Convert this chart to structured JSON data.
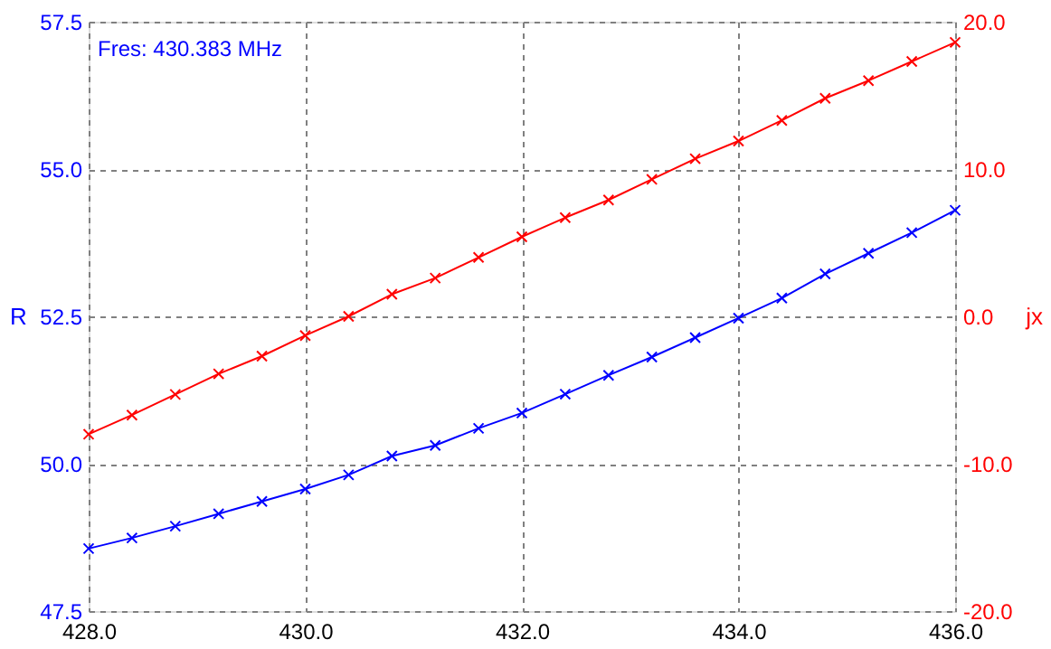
{
  "chart_data": {
    "type": "line",
    "ylabel": "R",
    "y2label": "jx",
    "annotations": [
      "Fres: 430.383 MHz"
    ],
    "x": [
      428.0,
      428.4,
      428.8,
      429.2,
      429.6,
      430.0,
      430.4,
      430.8,
      431.2,
      431.6,
      432.0,
      432.4,
      432.8,
      433.2,
      433.6,
      434.0,
      434.4,
      434.8,
      435.2,
      435.6,
      436.0
    ],
    "series": [
      {
        "color": "#0000ff",
        "values": [
          48.56,
          48.74,
          48.94,
          49.15,
          49.36,
          49.57,
          49.81,
          50.13,
          50.31,
          50.6,
          50.86,
          51.18,
          51.5,
          51.81,
          52.14,
          52.47,
          52.81,
          53.22,
          53.57,
          53.92,
          54.3
        ]
      },
      {
        "color": "#ff0000",
        "axis": "y2",
        "values": [
          -8.0,
          -6.7,
          -5.3,
          -3.9,
          -2.7,
          -1.3,
          0.0,
          1.5,
          2.6,
          4.0,
          5.4,
          6.7,
          7.9,
          9.3,
          10.7,
          11.9,
          13.3,
          14.8,
          16.0,
          17.3,
          18.6
        ]
      }
    ],
    "xlim": [
      428,
      436
    ],
    "xticks": [
      {
        "value": 428,
        "label": "428.0"
      },
      {
        "value": 430,
        "label": "430.0"
      },
      {
        "value": 432,
        "label": "432.0"
      },
      {
        "value": 434,
        "label": "434.0"
      },
      {
        "value": 436,
        "label": "436.0"
      }
    ],
    "ylim": [
      47.5,
      57.5
    ],
    "yticks": [
      47.5,
      {
        "value": 50,
        "label": "50.0"
      },
      52.5,
      {
        "value": 55,
        "label": "55.0"
      },
      57.5
    ],
    "y2lim": [
      -20,
      20
    ],
    "y2ticks": [
      {
        "value": -20,
        "label": "-20.0"
      },
      {
        "value": -10,
        "label": "-10.0"
      },
      {
        "value": 0,
        "label": "0.0"
      },
      {
        "value": 10,
        "label": "10.0"
      },
      {
        "value": 20,
        "label": "20.0"
      }
    ],
    "grid": true,
    "marker": "cross",
    "line_style": "solid"
  }
}
